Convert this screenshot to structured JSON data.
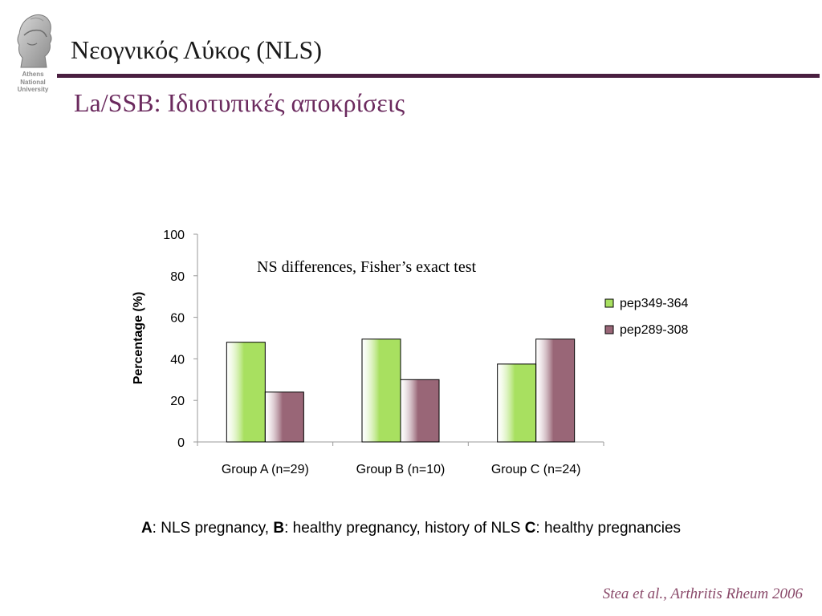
{
  "slide": {
    "title": "Νεογνικός Λύκος (NLS)",
    "subtitle": "La/SSB: Ιδιοτυπικές αποκρίσεις",
    "accent_color": "#4a1f40",
    "subtitle_color": "#6b2a5e"
  },
  "logo": {
    "icon": "athena-head-icon",
    "lines": [
      "Athens",
      "National",
      "University"
    ]
  },
  "chart_data": {
    "type": "bar",
    "title": "",
    "annotation": "NS differences, Fisher’s exact test",
    "xlabel": "",
    "ylabel": "Percentage (%)",
    "ylim": [
      0,
      100
    ],
    "yticks": [
      0,
      20,
      40,
      60,
      80,
      100
    ],
    "grid": false,
    "legend_position": "right",
    "categories": [
      "Group A (n=29)",
      "Group B (n=10)",
      "Group C (n=24)"
    ],
    "series": [
      {
        "name": "pep349-364",
        "color": "#a8e060",
        "values": [
          48,
          49.5,
          37.5
        ]
      },
      {
        "name": "pep289-308",
        "color": "#996677",
        "values": [
          24,
          30,
          49.5
        ]
      }
    ]
  },
  "caption": {
    "a_key": "A",
    "a_text": ": NLS pregnancy, ",
    "b_key": "B",
    "b_text": ": healthy pregnancy, history of NLS ",
    "c_key": "C",
    "c_text": ": healthy pregnancies"
  },
  "citation": "Stea et al., Arthritis Rheum 2006"
}
